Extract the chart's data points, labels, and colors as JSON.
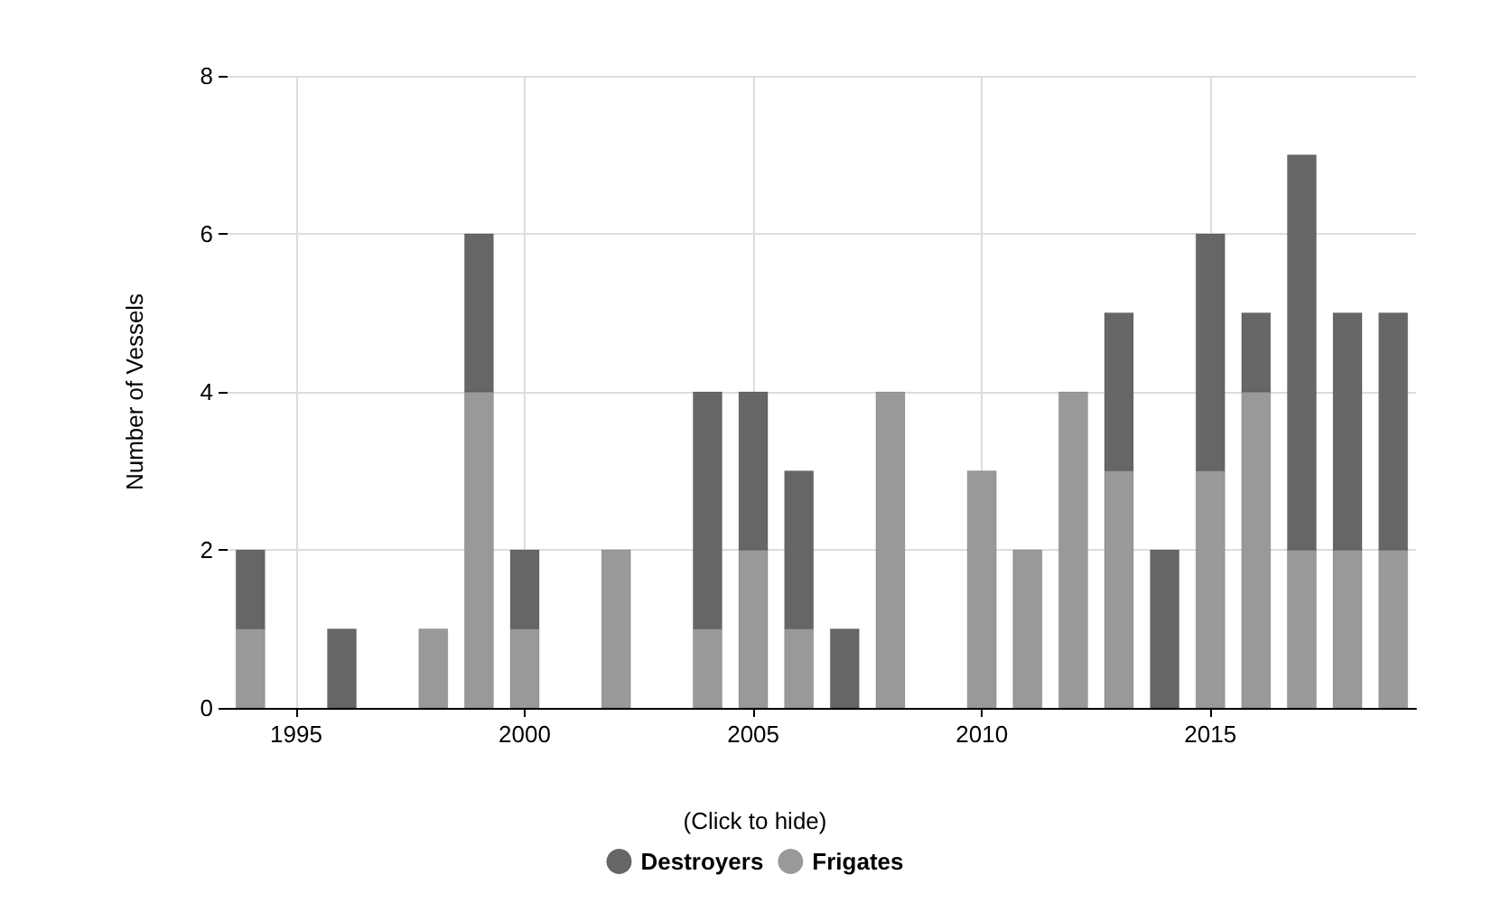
{
  "chart_data": {
    "type": "bar",
    "stacked": true,
    "ylabel": "Number of Vessels",
    "legend_title": "(Click to hide)",
    "x": [
      1994,
      1996,
      1998,
      1999,
      2000,
      2002,
      2004,
      2005,
      2006,
      2007,
      2008,
      2010,
      2011,
      2012,
      2013,
      2014,
      2015,
      2016,
      2017,
      2018,
      2019
    ],
    "series": [
      {
        "name": "Frigates",
        "color": "#999999",
        "values": [
          1,
          null,
          1,
          4,
          1,
          2,
          1,
          2,
          1,
          null,
          4,
          3,
          2,
          4,
          3,
          null,
          3,
          4,
          2,
          2,
          2
        ]
      },
      {
        "name": "Destroyers",
        "color": "#666666",
        "values": [
          1,
          1,
          null,
          2,
          1,
          null,
          3,
          2,
          2,
          1,
          null,
          null,
          null,
          null,
          2,
          2,
          3,
          1,
          5,
          3,
          3
        ]
      }
    ],
    "xlim": [
      1993.5,
      2019.5
    ],
    "xticks": [
      1995,
      2000,
      2005,
      2010,
      2015
    ],
    "ylim": [
      0,
      8
    ],
    "yticks": [
      0,
      2,
      4,
      6,
      8
    ],
    "grid": true,
    "legend": "bottom",
    "marker": "circle"
  }
}
